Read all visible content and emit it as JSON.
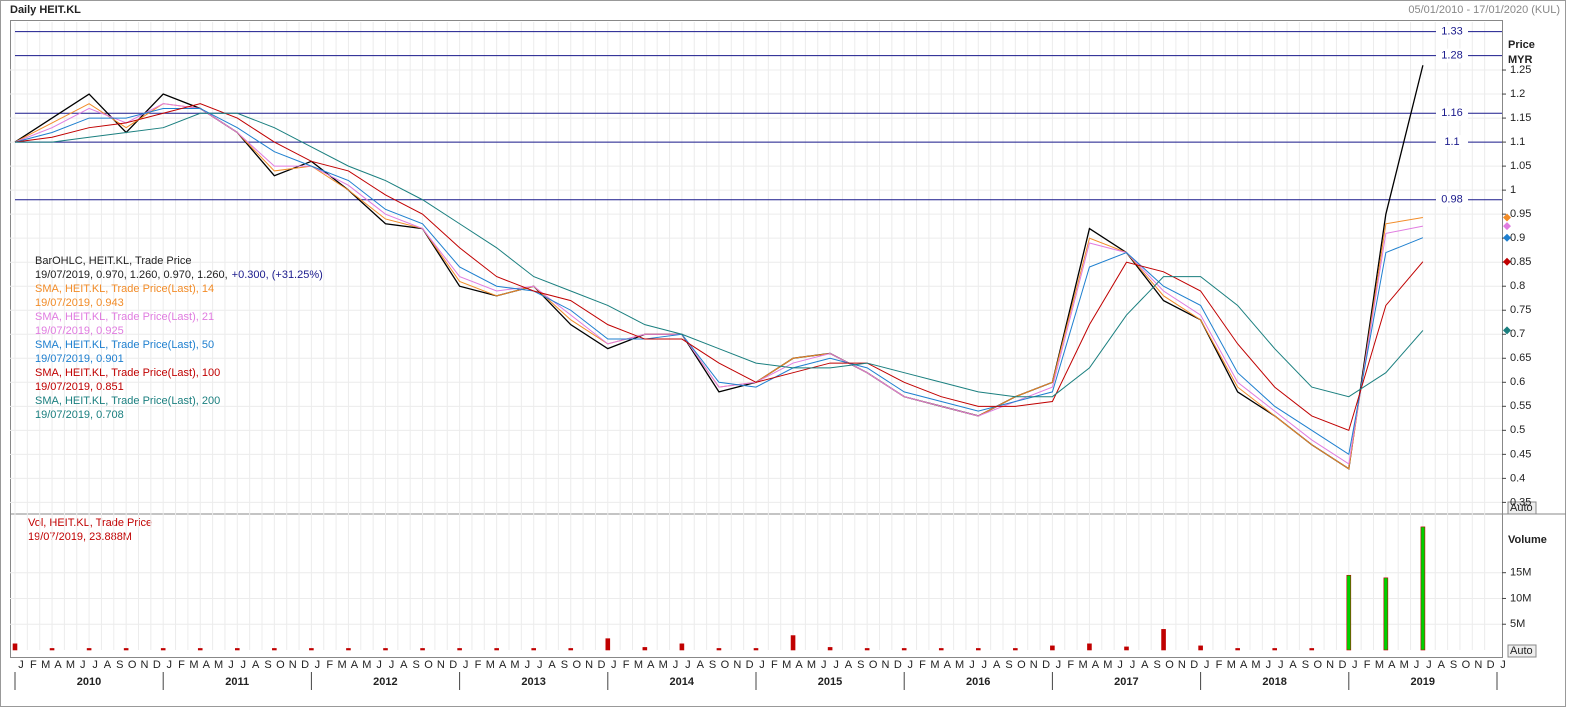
{
  "header": {
    "title": "Daily HEIT.KL",
    "range": "05/01/2010 - 17/01/2020 (KUL)",
    "auto": "Auto"
  },
  "chart_data": [
    {
      "type": "line",
      "y_axis_title": [
        "Price",
        "MYR"
      ],
      "x": [
        "2010-01",
        "2010-04",
        "2010-07",
        "2010-10",
        "2011-01",
        "2011-04",
        "2011-07",
        "2011-10",
        "2012-01",
        "2012-04",
        "2012-07",
        "2012-10",
        "2013-01",
        "2013-04",
        "2013-07",
        "2013-10",
        "2014-01",
        "2014-04",
        "2014-07",
        "2014-10",
        "2015-01",
        "2015-04",
        "2015-07",
        "2015-10",
        "2016-01",
        "2016-04",
        "2016-07",
        "2016-10",
        "2017-01",
        "2017-04",
        "2017-07",
        "2017-10",
        "2018-01",
        "2018-04",
        "2018-07",
        "2018-10",
        "2019-01",
        "2019-04",
        "2019-07"
      ],
      "month_labels": [
        "J",
        "F",
        "M",
        "A",
        "M",
        "J",
        "J",
        "A",
        "S",
        "O",
        "N",
        "D"
      ],
      "year_labels": [
        "2010",
        "2011",
        "2012",
        "2013",
        "2014",
        "2015",
        "2016",
        "2017",
        "2018",
        "2019"
      ],
      "ylim": [
        0.33,
        1.35
      ],
      "yticks": [
        0.35,
        0.4,
        0.45,
        0.5,
        0.55,
        0.6,
        0.65,
        0.7,
        0.75,
        0.8,
        0.85,
        0.9,
        0.95,
        1,
        1.05,
        1.1,
        1.15,
        1.2,
        1.25
      ],
      "hlines": [
        1.33,
        1.28,
        1.16,
        1.1,
        0.98
      ],
      "hline_color": "#1a1a8c",
      "grid": true,
      "price_legend": {
        "label": "BarOHLC, HEIT.KL, Trade Price",
        "detail": "19/07/2019, 0.970, 1.260, 0.970, 1.260,",
        "change": "+0.300, (+31.25%)"
      },
      "series": [
        {
          "name": "Trade Price",
          "color": "#000000",
          "values": [
            1.1,
            1.15,
            1.2,
            1.12,
            1.2,
            1.17,
            1.12,
            1.03,
            1.06,
            1.0,
            0.93,
            0.92,
            0.8,
            0.78,
            0.8,
            0.72,
            0.67,
            0.7,
            0.7,
            0.58,
            0.6,
            0.65,
            0.66,
            0.62,
            0.57,
            0.55,
            0.53,
            0.57,
            0.6,
            0.92,
            0.87,
            0.77,
            0.73,
            0.58,
            0.53,
            0.47,
            0.42,
            0.95,
            1.26
          ]
        },
        {
          "name": "SMA, HEIT.KL, Trade Price(Last),  14",
          "legend_value": "19/07/2019, 0.943",
          "color": "#f28c28",
          "values": [
            1.1,
            1.14,
            1.18,
            1.13,
            1.18,
            1.17,
            1.12,
            1.04,
            1.05,
            1.0,
            0.94,
            0.92,
            0.81,
            0.78,
            0.8,
            0.73,
            0.68,
            0.7,
            0.7,
            0.59,
            0.6,
            0.65,
            0.66,
            0.62,
            0.57,
            0.55,
            0.53,
            0.57,
            0.6,
            0.9,
            0.87,
            0.78,
            0.73,
            0.59,
            0.53,
            0.47,
            0.42,
            0.93,
            0.943
          ]
        },
        {
          "name": "SMA, HEIT.KL, Trade Price(Last),  21",
          "legend_value": "19/07/2019, 0.925",
          "color": "#e07ce0",
          "values": [
            1.1,
            1.13,
            1.17,
            1.14,
            1.18,
            1.17,
            1.12,
            1.05,
            1.05,
            1.01,
            0.95,
            0.92,
            0.82,
            0.79,
            0.8,
            0.74,
            0.68,
            0.7,
            0.7,
            0.59,
            0.6,
            0.64,
            0.66,
            0.62,
            0.57,
            0.55,
            0.53,
            0.56,
            0.59,
            0.89,
            0.87,
            0.79,
            0.74,
            0.6,
            0.54,
            0.48,
            0.43,
            0.91,
            0.925
          ]
        },
        {
          "name": "SMA, HEIT.KL, Trade Price(Last),  50",
          "legend_value": "19/07/2019, 0.901",
          "color": "#1e7fcf",
          "values": [
            1.1,
            1.12,
            1.15,
            1.15,
            1.17,
            1.17,
            1.13,
            1.08,
            1.05,
            1.02,
            0.96,
            0.93,
            0.84,
            0.8,
            0.79,
            0.75,
            0.69,
            0.69,
            0.7,
            0.6,
            0.59,
            0.63,
            0.65,
            0.63,
            0.58,
            0.56,
            0.54,
            0.56,
            0.58,
            0.84,
            0.87,
            0.8,
            0.76,
            0.62,
            0.55,
            0.5,
            0.45,
            0.87,
            0.901
          ]
        },
        {
          "name": "SMA, HEIT.KL, Trade Price(Last),  100",
          "legend_value": "19/07/2019, 0.851",
          "color": "#c00000",
          "values": [
            1.1,
            1.11,
            1.13,
            1.14,
            1.16,
            1.18,
            1.15,
            1.1,
            1.06,
            1.04,
            0.99,
            0.95,
            0.88,
            0.82,
            0.79,
            0.77,
            0.72,
            0.69,
            0.69,
            0.64,
            0.6,
            0.62,
            0.64,
            0.64,
            0.6,
            0.57,
            0.55,
            0.55,
            0.56,
            0.72,
            0.85,
            0.83,
            0.79,
            0.68,
            0.59,
            0.53,
            0.5,
            0.76,
            0.851
          ]
        },
        {
          "name": "SMA, HEIT.KL, Trade Price(Last),  200",
          "legend_value": "19/07/2019, 0.708",
          "color": "#1a7f7f",
          "values": [
            1.1,
            1.1,
            1.11,
            1.12,
            1.13,
            1.16,
            1.16,
            1.13,
            1.09,
            1.05,
            1.02,
            0.98,
            0.93,
            0.88,
            0.82,
            0.79,
            0.76,
            0.72,
            0.7,
            0.67,
            0.64,
            0.63,
            0.63,
            0.64,
            0.62,
            0.6,
            0.58,
            0.57,
            0.57,
            0.63,
            0.74,
            0.82,
            0.82,
            0.76,
            0.67,
            0.59,
            0.57,
            0.62,
            0.708
          ]
        }
      ]
    },
    {
      "type": "bar",
      "y_axis_title": "Volume",
      "legend": {
        "label": "Vol, HEIT.KL, Trade Price",
        "detail": "19/07/2019, 23.888M"
      },
      "color": "#c00000",
      "fill2": "#00d000",
      "values": [
        1200000,
        300000,
        300000,
        300000,
        300000,
        300000,
        300000,
        300000,
        300000,
        300000,
        300000,
        300000,
        300000,
        300000,
        300000,
        300000,
        2200000,
        500000,
        1200000,
        300000,
        300000,
        2800000,
        500000,
        300000,
        300000,
        300000,
        300000,
        300000,
        800000,
        1200000,
        600000,
        4000000,
        800000,
        300000,
        300000,
        300000,
        14500000,
        14000000,
        23888000
      ],
      "ylim": [
        0,
        26000000
      ],
      "yticks": [
        {
          "value": 5000000,
          "label": "5M"
        },
        {
          "value": 10000000,
          "label": "10M"
        },
        {
          "value": 15000000,
          "label": "15M"
        }
      ]
    }
  ]
}
